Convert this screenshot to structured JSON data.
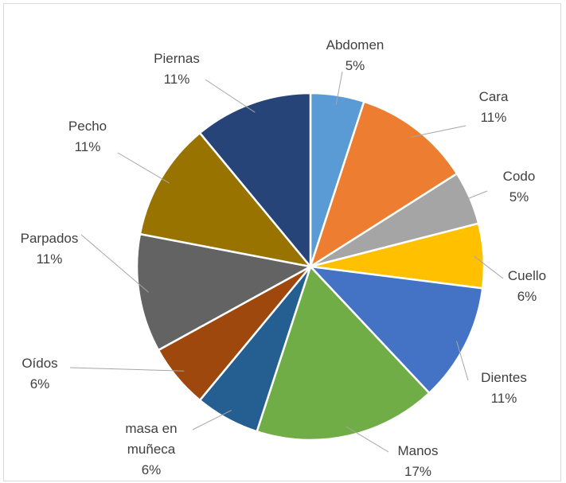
{
  "chart_data": {
    "type": "pie",
    "categories": [
      "Abdomen",
      "Cara",
      "Codo",
      "Cuello",
      "Dientes",
      "Manos",
      "masa en muñeca",
      "Oídos",
      "Parpados",
      "Pecho",
      "Piernas"
    ],
    "values": [
      5,
      11,
      5,
      6,
      11,
      17,
      6,
      6,
      11,
      11,
      11
    ],
    "value_labels": [
      "5%",
      "11%",
      "5%",
      "6%",
      "11%",
      "17%",
      "6%",
      "6%",
      "11%",
      "11%",
      "11%"
    ],
    "colors": [
      "#5b9bd5",
      "#ed7d31",
      "#a5a5a5",
      "#ffc000",
      "#4472c4",
      "#70ad47",
      "#255e91",
      "#9e480e",
      "#636363",
      "#997300",
      "#264478"
    ]
  }
}
